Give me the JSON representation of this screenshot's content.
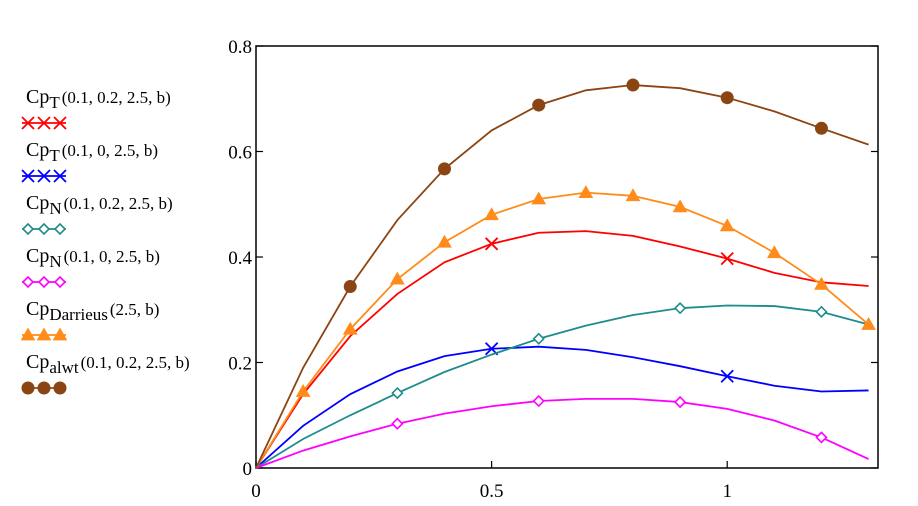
{
  "chart_data": {
    "type": "line",
    "xlim": [
      0,
      1.32
    ],
    "ylim": [
      0,
      0.8
    ],
    "x_ticks": [
      0,
      0.5,
      1
    ],
    "x_tick_labels": [
      "0",
      "0.5",
      "1"
    ],
    "y_ticks": [
      0,
      0.2,
      0.4,
      0.6,
      0.8
    ],
    "y_tick_labels": [
      "0",
      "0.2",
      "0.4",
      "0.6",
      "0.8"
    ],
    "legend_position": "left",
    "series": [
      {
        "name": "CpT(0.1, 0.2, 2.5, b)",
        "label_base": "Cp",
        "label_sub": "T",
        "label_args": "(0.1, 0.2, 2.5, b)",
        "color": "#ff0000",
        "marker": "x",
        "x": [
          0,
          0.1,
          0.2,
          0.3,
          0.4,
          0.5,
          0.6,
          0.7,
          0.8,
          0.9,
          1.0,
          1.1,
          1.2,
          1.3
        ],
        "y": [
          0,
          0.14,
          0.25,
          0.33,
          0.39,
          0.425,
          0.446,
          0.449,
          0.44,
          0.42,
          0.397,
          0.37,
          0.352,
          0.345
        ],
        "marker_x": [
          0.5,
          1.0
        ]
      },
      {
        "name": "CpT(0.1, 0, 2.5, b)",
        "label_base": "Cp",
        "label_sub": "T",
        "label_args": "(0.1, 0, 2.5, b)",
        "color": "#0000ff",
        "marker": "x",
        "x": [
          0,
          0.1,
          0.2,
          0.3,
          0.4,
          0.5,
          0.6,
          0.7,
          0.8,
          0.9,
          1.0,
          1.1,
          1.2,
          1.3
        ],
        "y": [
          0,
          0.08,
          0.14,
          0.183,
          0.212,
          0.226,
          0.23,
          0.224,
          0.21,
          0.193,
          0.174,
          0.156,
          0.145,
          0.147
        ],
        "marker_x": [
          0.5,
          1.0
        ]
      },
      {
        "name": "CpN(0.1, 0.2, 2.5, b)",
        "label_base": "Cp",
        "label_sub": "N",
        "label_args": "(0.1, 0.2, 2.5, b)",
        "color": "#1e8c8c",
        "marker": "diamond",
        "x": [
          0,
          0.1,
          0.2,
          0.3,
          0.4,
          0.5,
          0.6,
          0.7,
          0.8,
          0.9,
          1.0,
          1.1,
          1.2,
          1.3
        ],
        "y": [
          0,
          0.055,
          0.1,
          0.142,
          0.182,
          0.215,
          0.245,
          0.27,
          0.29,
          0.303,
          0.308,
          0.307,
          0.296,
          0.272
        ],
        "marker_x": [
          0.3,
          0.6,
          0.9,
          1.2
        ]
      },
      {
        "name": "CpN(0.1, 0, 2.5, b)",
        "label_base": "Cp",
        "label_sub": "N",
        "label_args": "(0.1, 0, 2.5, b)",
        "color": "#ff00ff",
        "marker": "diamond",
        "x": [
          0,
          0.1,
          0.2,
          0.3,
          0.4,
          0.5,
          0.6,
          0.7,
          0.8,
          0.9,
          1.0,
          1.1,
          1.2,
          1.3
        ],
        "y": [
          0,
          0.033,
          0.06,
          0.084,
          0.103,
          0.117,
          0.127,
          0.131,
          0.131,
          0.125,
          0.112,
          0.09,
          0.058,
          0.017
        ],
        "marker_x": [
          0.3,
          0.6,
          0.9,
          1.2
        ]
      },
      {
        "name": "CpDarrieus(2.5, b)",
        "label_base": "Cp",
        "label_sub": "Darrieus",
        "label_args": "(2.5, b)",
        "color": "#ff8c1a",
        "marker": "triangle",
        "x": [
          0,
          0.1,
          0.2,
          0.3,
          0.4,
          0.5,
          0.6,
          0.7,
          0.8,
          0.9,
          1.0,
          1.1,
          1.2,
          1.3
        ],
        "y": [
          0,
          0.145,
          0.263,
          0.358,
          0.428,
          0.48,
          0.51,
          0.522,
          0.516,
          0.495,
          0.459,
          0.408,
          0.348,
          0.272
        ],
        "marker_x": [
          0.1,
          0.2,
          0.3,
          0.4,
          0.5,
          0.6,
          0.7,
          0.8,
          0.9,
          1.0,
          1.1,
          1.2,
          1.3
        ]
      },
      {
        "name": "Cpalwt(0.1, 0.2, 2.5, b)",
        "label_base": "Cp",
        "label_sub": "alwt",
        "label_args": "(0.1, 0.2, 2.5, b)",
        "color": "#8b4513",
        "marker": "circle",
        "x": [
          0,
          0.1,
          0.2,
          0.3,
          0.4,
          0.5,
          0.6,
          0.7,
          0.8,
          0.9,
          1.0,
          1.1,
          1.2,
          1.3
        ],
        "y": [
          0,
          0.19,
          0.344,
          0.47,
          0.567,
          0.64,
          0.688,
          0.716,
          0.726,
          0.72,
          0.702,
          0.676,
          0.644,
          0.613
        ],
        "marker_x": [
          0.2,
          0.4,
          0.6,
          0.8,
          1.0,
          1.2
        ]
      }
    ]
  }
}
